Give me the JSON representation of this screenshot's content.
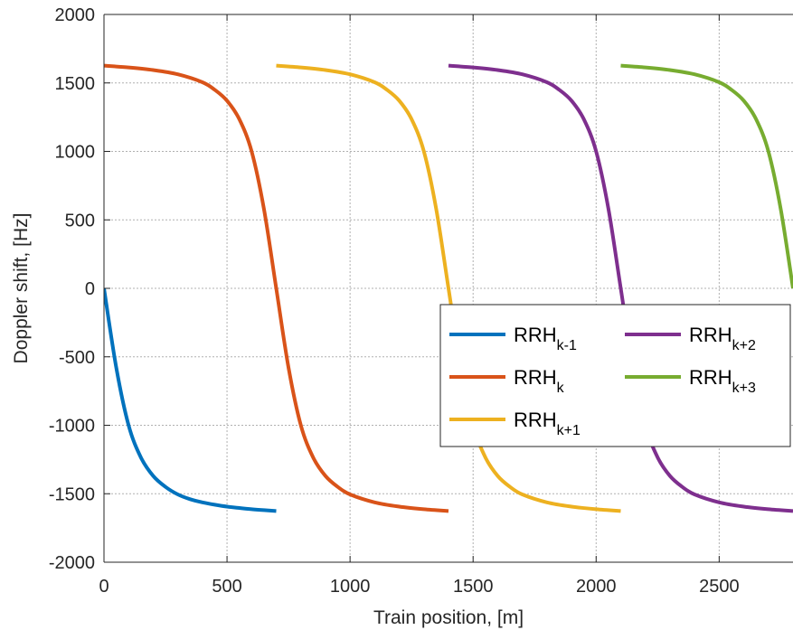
{
  "chart_data": {
    "type": "line",
    "title": "",
    "xlabel": "Train position, [m]",
    "ylabel": "Doppler shift, [Hz]",
    "xlim": [
      0,
      2800
    ],
    "ylim": [
      -2000,
      2000
    ],
    "xticks": [
      0,
      500,
      1000,
      1500,
      2000,
      2500
    ],
    "yticks": [
      -2000,
      -1500,
      -1000,
      -500,
      0,
      500,
      1000,
      1500,
      2000
    ],
    "grid": true,
    "legend_position": "center-right",
    "series": [
      {
        "name": "RRH",
        "name_sub": "k-1",
        "color": "#0072BD",
        "x": [
          0,
          50,
          100,
          150,
          200,
          250,
          300,
          350,
          400,
          450,
          500,
          550,
          600,
          650,
          700
        ],
        "y": [
          0,
          -580,
          -1000,
          -1235,
          -1370,
          -1450,
          -1505,
          -1540,
          -1563,
          -1580,
          -1594,
          -1604,
          -1613,
          -1620,
          -1626
        ]
      },
      {
        "name": "RRH",
        "name_sub": "k",
        "color": "#D95319",
        "x": [
          0,
          100,
          200,
          300,
          400,
          450,
          500,
          550,
          600,
          650,
          700,
          750,
          800,
          850,
          900,
          950,
          1000,
          1100,
          1200,
          1300,
          1400
        ],
        "y": [
          1626,
          1613,
          1594,
          1563,
          1505,
          1450,
          1370,
          1235,
          1000,
          580,
          0,
          -580,
          -1000,
          -1235,
          -1370,
          -1450,
          -1505,
          -1563,
          -1594,
          -1613,
          -1626
        ]
      },
      {
        "name": "RRH",
        "name_sub": "k+1",
        "color": "#EDB120",
        "x": [
          700,
          800,
          900,
          1000,
          1100,
          1150,
          1200,
          1250,
          1300,
          1350,
          1400,
          1450,
          1500,
          1550,
          1600,
          1650,
          1700,
          1800,
          1900,
          2000,
          2100
        ],
        "y": [
          1626,
          1613,
          1594,
          1563,
          1505,
          1450,
          1370,
          1235,
          1000,
          580,
          0,
          -580,
          -1000,
          -1235,
          -1370,
          -1450,
          -1505,
          -1563,
          -1594,
          -1613,
          -1626
        ]
      },
      {
        "name": "RRH",
        "name_sub": "k+2",
        "color": "#7E2F8E",
        "x": [
          1400,
          1500,
          1600,
          1700,
          1800,
          1850,
          1900,
          1950,
          2000,
          2050,
          2100,
          2150,
          2200,
          2250,
          2300,
          2350,
          2400,
          2500,
          2600,
          2700,
          2800
        ],
        "y": [
          1626,
          1613,
          1594,
          1563,
          1505,
          1450,
          1370,
          1235,
          1000,
          580,
          0,
          -580,
          -1000,
          -1235,
          -1370,
          -1450,
          -1505,
          -1563,
          -1594,
          -1613,
          -1626
        ]
      },
      {
        "name": "RRH",
        "name_sub": "k+3",
        "color": "#77AC30",
        "x": [
          2100,
          2200,
          2300,
          2400,
          2500,
          2550,
          2600,
          2650,
          2700,
          2750,
          2800
        ],
        "y": [
          1626,
          1613,
          1594,
          1563,
          1505,
          1450,
          1370,
          1235,
          1000,
          580,
          0
        ]
      }
    ]
  }
}
